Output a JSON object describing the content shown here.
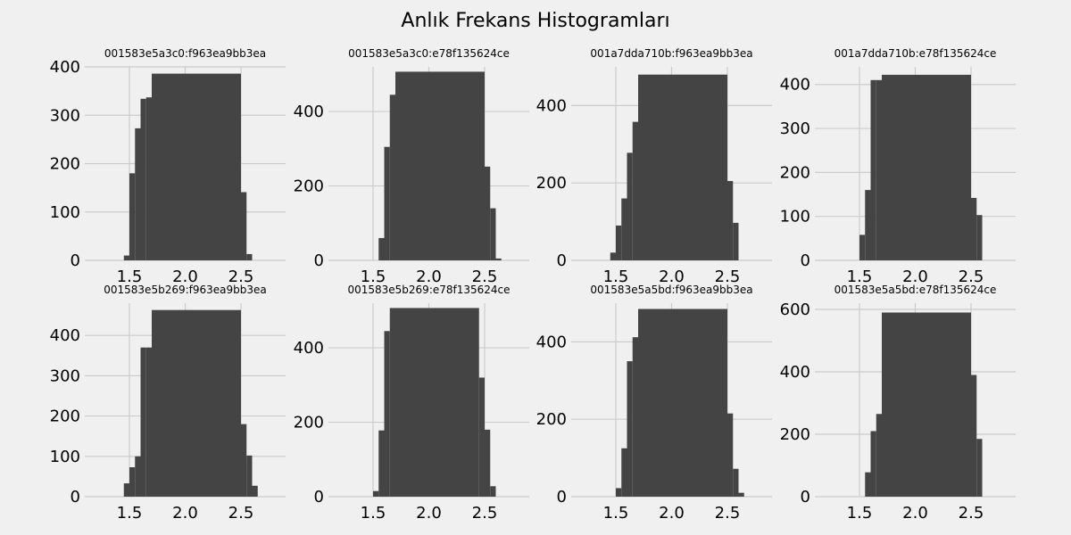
{
  "title": "Anlık Frekans Histogramları",
  "colors": {
    "background": "#f0f0f0",
    "bar": "#444444",
    "grid": "#cbcbcb"
  },
  "chart_data": [
    {
      "type": "bar",
      "title": "001583e5a3c0:f963ea9bb3ea",
      "xlim": [
        1.1,
        2.9
      ],
      "ylim": [
        0,
        400
      ],
      "xticks": [
        1.5,
        2.0,
        2.5
      ],
      "yticks": [
        0,
        100,
        200,
        300,
        400
      ],
      "grid": true,
      "bins": [
        [
          1.45,
          1.5,
          10
        ],
        [
          1.5,
          1.55,
          180
        ],
        [
          1.55,
          1.6,
          273
        ],
        [
          1.6,
          1.65,
          334
        ],
        [
          1.65,
          1.7,
          337
        ],
        [
          1.7,
          2.5,
          386
        ],
        [
          2.5,
          2.55,
          141
        ],
        [
          2.55,
          2.6,
          13
        ]
      ]
    },
    {
      "type": "bar",
      "title": "001583e5a3c0:e78f135624ce",
      "xlim": [
        1.1,
        2.9
      ],
      "ylim": [
        0,
        520
      ],
      "xticks": [
        1.5,
        2.0,
        2.5
      ],
      "yticks": [
        0,
        200,
        400
      ],
      "grid": true,
      "bins": [
        [
          1.55,
          1.6,
          60
        ],
        [
          1.6,
          1.65,
          305
        ],
        [
          1.65,
          1.7,
          445
        ],
        [
          1.7,
          2.5,
          507
        ],
        [
          2.5,
          2.55,
          252
        ],
        [
          2.55,
          2.6,
          140
        ],
        [
          2.6,
          2.65,
          5
        ]
      ]
    },
    {
      "type": "bar",
      "title": "001a7dda710b:f963ea9bb3ea",
      "xlim": [
        1.1,
        2.9
      ],
      "ylim": [
        0,
        500
      ],
      "xticks": [
        1.5,
        2.0,
        2.5
      ],
      "yticks": [
        0,
        200,
        400
      ],
      "grid": true,
      "bins": [
        [
          1.45,
          1.5,
          20
        ],
        [
          1.5,
          1.55,
          90
        ],
        [
          1.55,
          1.6,
          160
        ],
        [
          1.6,
          1.65,
          278
        ],
        [
          1.65,
          1.7,
          358
        ],
        [
          1.7,
          2.5,
          480
        ],
        [
          2.5,
          2.55,
          205
        ],
        [
          2.55,
          2.6,
          97
        ]
      ]
    },
    {
      "type": "bar",
      "title": "001a7dda710b:e78f135624ce",
      "xlim": [
        1.1,
        2.9
      ],
      "ylim": [
        0,
        440
      ],
      "xticks": [
        1.5,
        2.0,
        2.5
      ],
      "yticks": [
        0,
        100,
        200,
        300,
        400
      ],
      "grid": true,
      "bins": [
        [
          1.5,
          1.55,
          58
        ],
        [
          1.55,
          1.6,
          160
        ],
        [
          1.6,
          1.65,
          410
        ],
        [
          1.65,
          1.7,
          410
        ],
        [
          1.7,
          2.5,
          422
        ],
        [
          2.5,
          2.55,
          142
        ],
        [
          2.55,
          2.6,
          103
        ]
      ]
    },
    {
      "type": "bar",
      "title": "001583e5b269:f963ea9bb3ea",
      "xlim": [
        1.1,
        2.9
      ],
      "ylim": [
        0,
        480
      ],
      "xticks": [
        1.5,
        2.0,
        2.5
      ],
      "yticks": [
        0,
        100,
        200,
        300,
        400
      ],
      "grid": true,
      "bins": [
        [
          1.45,
          1.5,
          33
        ],
        [
          1.5,
          1.55,
          73
        ],
        [
          1.55,
          1.6,
          100
        ],
        [
          1.6,
          1.65,
          370
        ],
        [
          1.65,
          1.7,
          370
        ],
        [
          1.7,
          2.5,
          463
        ],
        [
          2.5,
          2.55,
          180
        ],
        [
          2.55,
          2.6,
          102
        ],
        [
          2.6,
          2.65,
          27
        ]
      ]
    },
    {
      "type": "bar",
      "title": "001583e5b269:e78f135624ce",
      "xlim": [
        1.1,
        2.9
      ],
      "ylim": [
        0,
        520
      ],
      "xticks": [
        1.5,
        2.0,
        2.5
      ],
      "yticks": [
        0,
        200,
        400
      ],
      "grid": true,
      "bins": [
        [
          1.5,
          1.55,
          15
        ],
        [
          1.55,
          1.6,
          178
        ],
        [
          1.6,
          1.65,
          445
        ],
        [
          1.65,
          1.7,
          507
        ],
        [
          1.7,
          2.45,
          507
        ],
        [
          2.45,
          2.5,
          320
        ],
        [
          2.5,
          2.55,
          180
        ],
        [
          2.55,
          2.6,
          28
        ]
      ]
    },
    {
      "type": "bar",
      "title": "001583e5a5bd:f963ea9bb3ea",
      "xlim": [
        1.1,
        2.9
      ],
      "ylim": [
        0,
        500
      ],
      "xticks": [
        1.5,
        2.0,
        2.5
      ],
      "yticks": [
        0,
        200,
        400
      ],
      "grid": true,
      "bins": [
        [
          1.5,
          1.55,
          22
        ],
        [
          1.55,
          1.6,
          125
        ],
        [
          1.6,
          1.65,
          350
        ],
        [
          1.65,
          1.7,
          412
        ],
        [
          1.7,
          2.5,
          485
        ],
        [
          2.5,
          2.55,
          215
        ],
        [
          2.55,
          2.6,
          72
        ],
        [
          2.6,
          2.65,
          10
        ]
      ]
    },
    {
      "type": "bar",
      "title": "001583e5a5bd:e78f135624ce",
      "xlim": [
        1.1,
        2.9
      ],
      "ylim": [
        0,
        620
      ],
      "xticks": [
        1.5,
        2.0,
        2.5
      ],
      "yticks": [
        0,
        200,
        400,
        600
      ],
      "grid": true,
      "bins": [
        [
          1.55,
          1.6,
          78
        ],
        [
          1.6,
          1.65,
          210
        ],
        [
          1.65,
          1.7,
          265
        ],
        [
          1.7,
          2.5,
          590
        ],
        [
          2.5,
          2.55,
          390
        ],
        [
          2.55,
          2.6,
          185
        ]
      ]
    }
  ]
}
